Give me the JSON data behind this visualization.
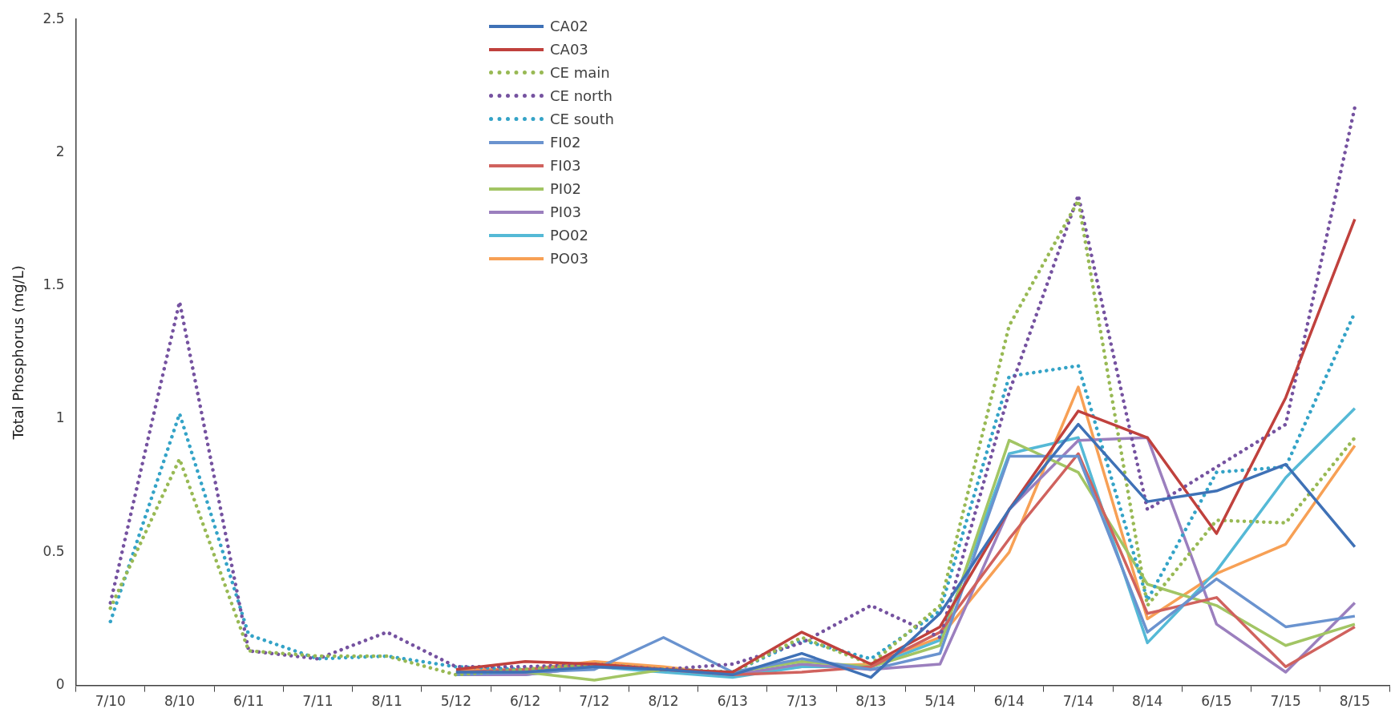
{
  "chart_data": {
    "type": "line",
    "ylabel": "Total Phosphorus (mg/L)",
    "categories": [
      "7/10",
      "8/10",
      "6/11",
      "7/11",
      "8/11",
      "5/12",
      "6/12",
      "7/12",
      "8/12",
      "6/13",
      "7/13",
      "8/13",
      "5/14",
      "6/14",
      "7/14",
      "8/14",
      "6/15",
      "7/15",
      "8/15"
    ],
    "ylim": [
      0,
      2.5
    ],
    "yticks": [
      0,
      0.5,
      1,
      1.5,
      2,
      2.5
    ],
    "grid": false,
    "legend": "top",
    "marker": "none",
    "series": [
      {
        "name": "CA02",
        "color": "#3f71b6",
        "line_style": "solid",
        "values": [
          null,
          null,
          null,
          null,
          null,
          0.05,
          0.05,
          0.07,
          0.06,
          0.04,
          0.12,
          0.03,
          0.27,
          0.66,
          0.98,
          0.69,
          0.73,
          0.83,
          0.52
        ]
      },
      {
        "name": "CA03",
        "color": "#c0413d",
        "line_style": "solid",
        "values": [
          null,
          null,
          null,
          null,
          null,
          0.06,
          0.09,
          0.08,
          0.06,
          0.05,
          0.2,
          0.08,
          0.22,
          0.66,
          1.03,
          0.93,
          0.57,
          1.08,
          1.75
        ]
      },
      {
        "name": "CE main",
        "color": "#98b954",
        "line_style": "dotted",
        "values": [
          0.29,
          0.85,
          0.13,
          0.11,
          0.11,
          0.04,
          0.06,
          0.08,
          0.06,
          0.05,
          0.18,
          0.08,
          0.3,
          1.35,
          1.82,
          0.3,
          0.62,
          0.61,
          0.93
        ]
      },
      {
        "name": "CE north",
        "color": "#7552a0",
        "line_style": "dotted",
        "values": [
          0.31,
          1.44,
          0.13,
          0.1,
          0.2,
          0.07,
          0.07,
          0.08,
          0.06,
          0.08,
          0.16,
          0.3,
          0.18,
          1.1,
          1.84,
          0.66,
          0.82,
          0.98,
          2.17
        ]
      },
      {
        "name": "CE south",
        "color": "#34a3c7",
        "line_style": "dotted",
        "values": [
          0.24,
          1.02,
          0.19,
          0.1,
          0.11,
          0.07,
          0.06,
          0.08,
          0.06,
          0.05,
          0.17,
          0.1,
          0.28,
          1.16,
          1.2,
          0.32,
          0.8,
          0.82,
          1.4
        ]
      },
      {
        "name": "FI02",
        "color": "#6a93cf",
        "line_style": "solid",
        "values": [
          null,
          null,
          null,
          null,
          null,
          0.04,
          0.05,
          0.06,
          0.18,
          0.05,
          0.1,
          0.06,
          0.12,
          0.86,
          0.86,
          0.2,
          0.4,
          0.22,
          0.26
        ]
      },
      {
        "name": "FI03",
        "color": "#d0625e",
        "line_style": "solid",
        "values": [
          null,
          null,
          null,
          null,
          null,
          0.05,
          0.06,
          0.08,
          0.06,
          0.04,
          0.05,
          0.07,
          0.2,
          0.55,
          0.87,
          0.27,
          0.33,
          0.07,
          0.22
        ]
      },
      {
        "name": "PI02",
        "color": "#a2c564",
        "line_style": "solid",
        "values": [
          null,
          null,
          null,
          null,
          null,
          0.05,
          0.05,
          0.02,
          0.06,
          0.05,
          0.09,
          0.07,
          0.15,
          0.92,
          0.8,
          0.38,
          0.3,
          0.15,
          0.23
        ]
      },
      {
        "name": "PI03",
        "color": "#9b7fbe",
        "line_style": "solid",
        "values": [
          null,
          null,
          null,
          null,
          null,
          0.04,
          0.04,
          0.07,
          0.06,
          0.04,
          0.08,
          0.06,
          0.08,
          0.66,
          0.92,
          0.93,
          0.23,
          0.05,
          0.31
        ]
      },
      {
        "name": "PO02",
        "color": "#55b9d6",
        "line_style": "solid",
        "values": [
          null,
          null,
          null,
          null,
          null,
          0.05,
          0.04,
          0.07,
          0.05,
          0.03,
          0.07,
          0.07,
          0.17,
          0.87,
          0.93,
          0.16,
          0.43,
          0.78,
          1.04
        ]
      },
      {
        "name": "PO03",
        "color": "#f7a055",
        "line_style": "solid",
        "values": [
          null,
          null,
          null,
          null,
          null,
          0.06,
          0.06,
          0.09,
          0.07,
          0.04,
          0.07,
          0.08,
          0.18,
          0.5,
          1.12,
          0.25,
          0.42,
          0.53,
          0.9
        ]
      }
    ]
  }
}
